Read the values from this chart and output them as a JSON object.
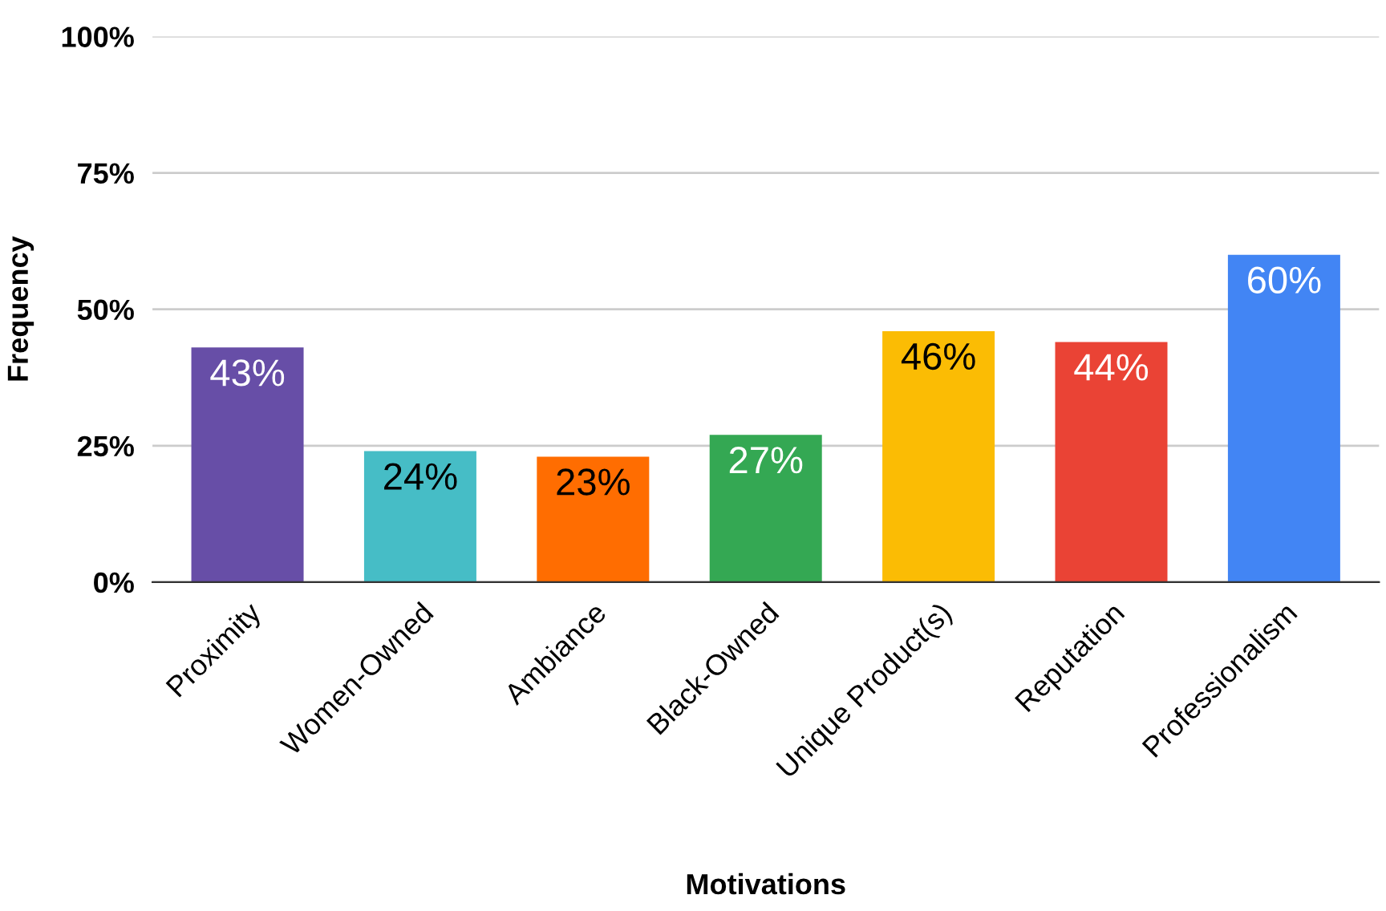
{
  "chart_data": {
    "type": "bar",
    "xlabel": "Motivations",
    "ylabel": "Frequency",
    "categories": [
      "Proximity",
      "Women-Owned",
      "Ambiance",
      "Black-Owned",
      "Unique Product(s)",
      "Reputation",
      "Professionalism"
    ],
    "values": [
      43,
      24,
      23,
      27,
      46,
      44,
      60
    ],
    "value_labels": [
      "43%",
      "24%",
      "23%",
      "27%",
      "46%",
      "44%",
      "60%"
    ],
    "colors": [
      "#674ea7",
      "#46bdc6",
      "#ff6d01",
      "#34a853",
      "#fbbc04",
      "#ea4335",
      "#4285f4"
    ],
    "ylim": [
      0,
      100
    ],
    "yticks": [
      {
        "value": 0,
        "label": "0%"
      },
      {
        "value": 25,
        "label": "25%"
      },
      {
        "value": 50,
        "label": "50%"
      },
      {
        "value": 75,
        "label": "75%"
      },
      {
        "value": 100,
        "label": "100%"
      }
    ],
    "grid": "y"
  }
}
